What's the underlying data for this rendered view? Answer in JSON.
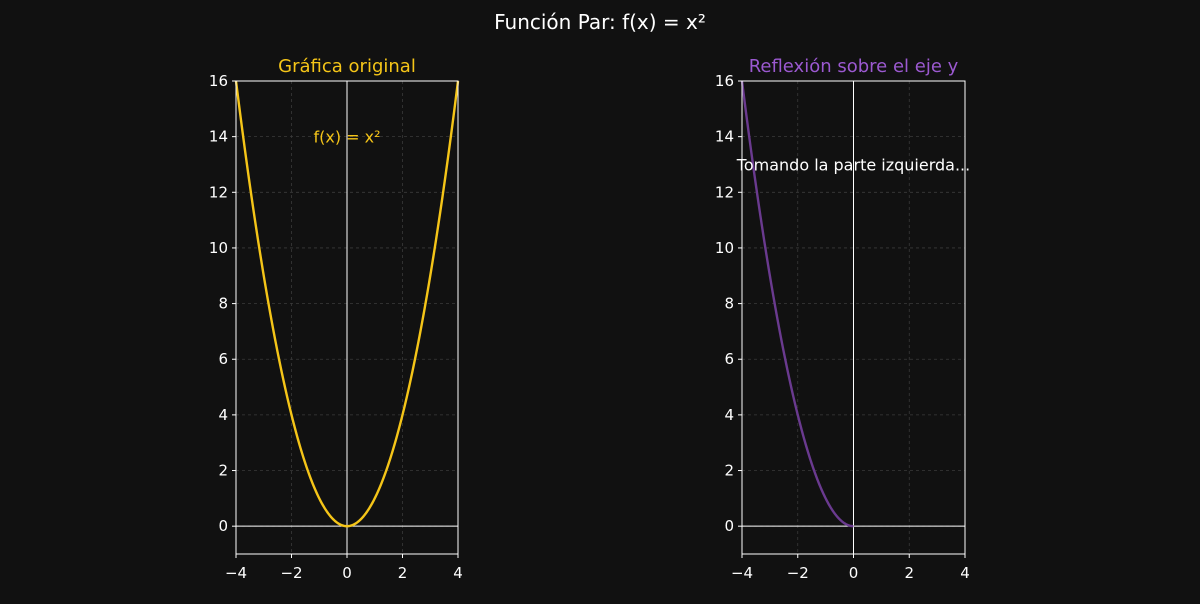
{
  "figure": {
    "title": "Función Par: f(x) = x²",
    "background": "#111111",
    "axis_color": "#ffffff"
  },
  "chart_data": [
    {
      "type": "line",
      "title": "Gráfica original",
      "title_color": "#f5c518",
      "xlabel": "",
      "ylabel": "",
      "xlim": [
        -4,
        4
      ],
      "ylim": [
        -1,
        16
      ],
      "xticks": [
        -4,
        -2,
        0,
        2,
        4
      ],
      "yticks": [
        0,
        2,
        4,
        6,
        8,
        10,
        12,
        14,
        16
      ],
      "grid": true,
      "axis_lines_at_zero": true,
      "annotations": [
        {
          "text": "f(x) = x²",
          "x": 0,
          "y": 14,
          "color": "#f5c518"
        }
      ],
      "series": [
        {
          "color": "#f5c518",
          "x": [
            -4,
            -3.5,
            -3,
            -2.5,
            -2,
            -1.5,
            -1,
            -0.5,
            0,
            0.5,
            1,
            1.5,
            2,
            2.5,
            3,
            3.5,
            4
          ],
          "y": [
            16,
            12.25,
            9,
            6.25,
            4,
            2.25,
            1,
            0.25,
            0,
            0.25,
            1,
            2.25,
            4,
            6.25,
            9,
            12.25,
            16
          ]
        }
      ]
    },
    {
      "type": "line",
      "title": "Reflexión sobre el eje y",
      "title_color": "#9b59d0",
      "xlabel": "",
      "ylabel": "",
      "xlim": [
        -4,
        4
      ],
      "ylim": [
        -1,
        16
      ],
      "xticks": [
        -4,
        -2,
        0,
        2,
        4
      ],
      "yticks": [
        0,
        2,
        4,
        6,
        8,
        10,
        12,
        14,
        16
      ],
      "grid": true,
      "axis_lines_at_zero": true,
      "annotations": [
        {
          "text": "Tomando la parte izquierda...",
          "x": 0,
          "y": 13,
          "color": "#ffffff"
        }
      ],
      "series": [
        {
          "color": "#6a3a8f",
          "x": [
            -4,
            -3.5,
            -3,
            -2.5,
            -2,
            -1.5,
            -1,
            -0.5,
            0
          ],
          "y": [
            16,
            12.25,
            9,
            6.25,
            4,
            2.25,
            1,
            0.25,
            0
          ]
        }
      ]
    }
  ]
}
